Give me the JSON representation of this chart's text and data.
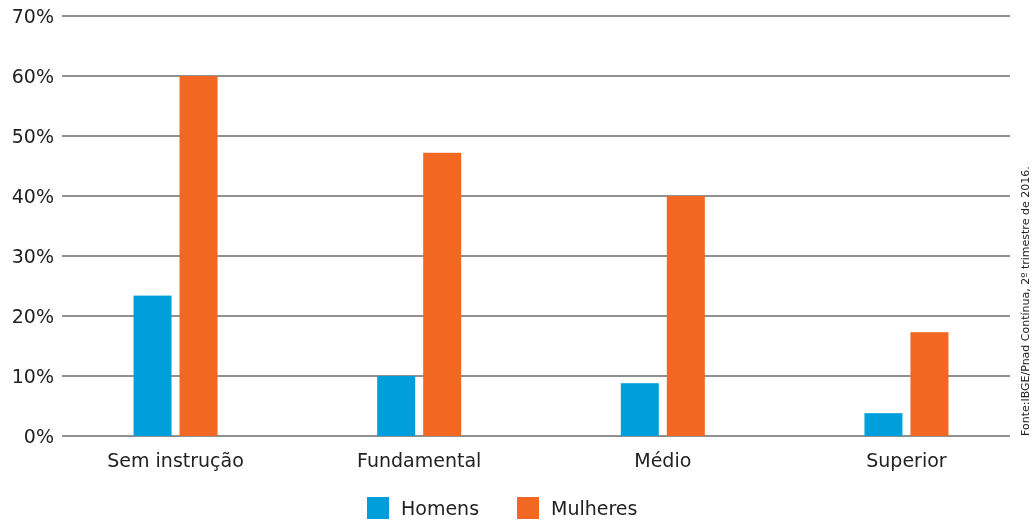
{
  "chart_data": {
    "type": "bar",
    "categories": [
      "Sem instrução",
      "Fundamental",
      "Médio",
      "Superior"
    ],
    "series": [
      {
        "name": "Homens",
        "color": "#009fdb",
        "values": [
          23.4,
          10,
          8.8,
          3.8
        ]
      },
      {
        "name": "Mulheres",
        "color": "#f26722",
        "values": [
          60,
          47.2,
          40,
          17.3
        ]
      }
    ],
    "ylim": [
      0,
      70
    ],
    "yticks": [
      {
        "value": 0,
        "label": "0%"
      },
      {
        "value": 10,
        "label": "10%"
      },
      {
        "value": 20,
        "label": "20%"
      },
      {
        "value": 30,
        "label": "30%"
      },
      {
        "value": 40,
        "label": "40%"
      },
      {
        "value": 50,
        "label": "50%"
      },
      {
        "value": 60,
        "label": "60%"
      },
      {
        "value": 70,
        "label": "70%"
      }
    ],
    "grid": "y",
    "legend": "bottom",
    "annotations": [
      "Fonte:IBGE/Pnad Contínua, 2º trimestre de 2016."
    ]
  }
}
